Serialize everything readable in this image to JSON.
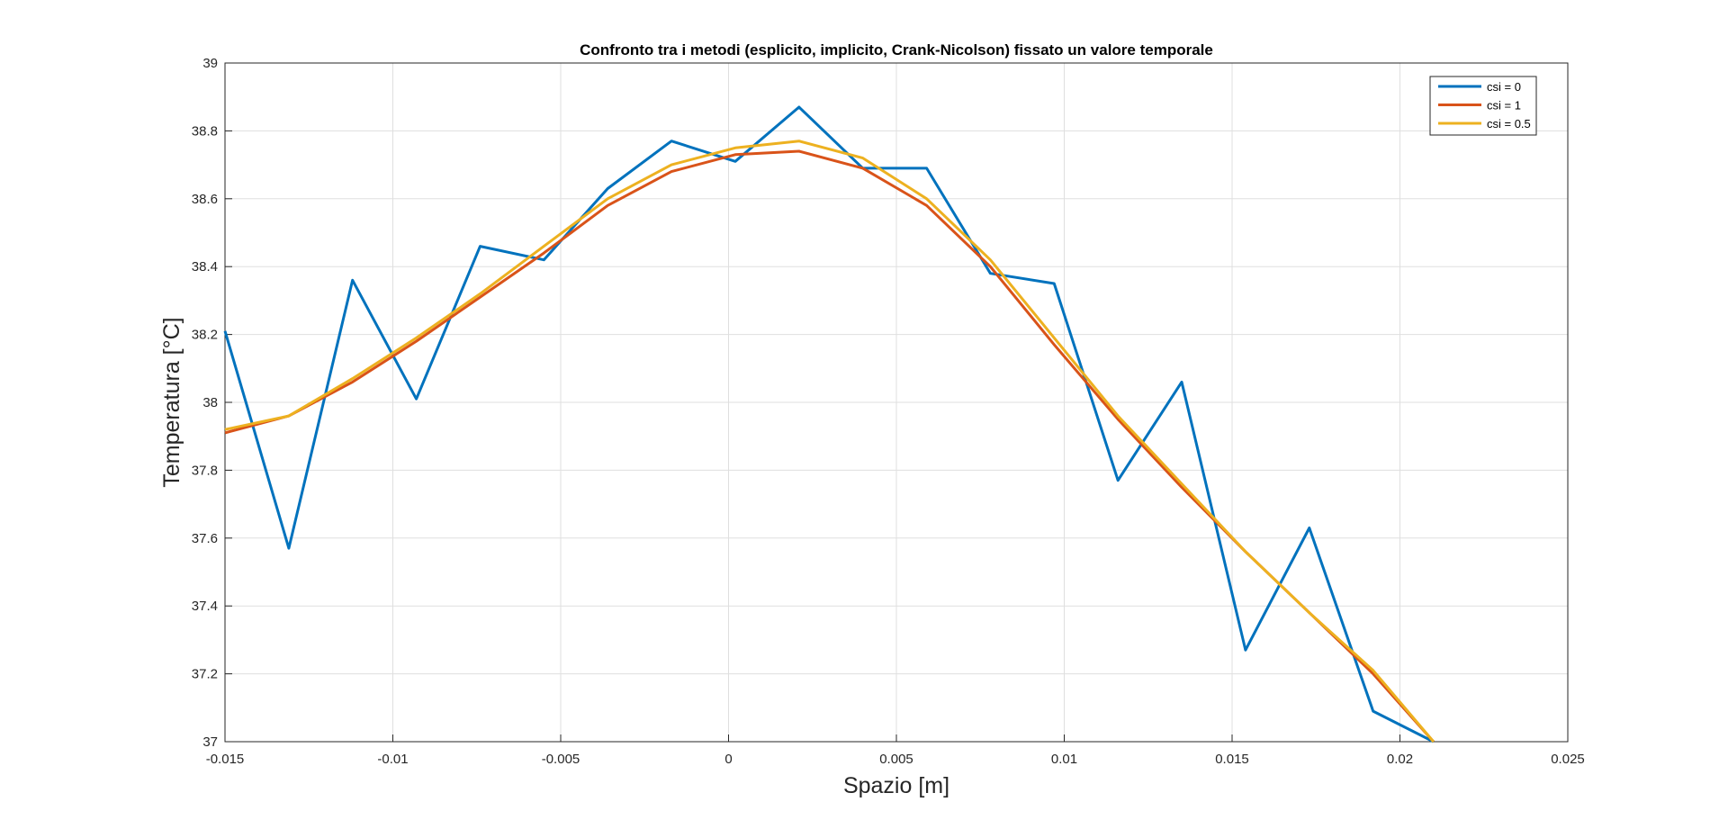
{
  "chart_data": {
    "type": "line",
    "title": "Confronto tra i metodi (esplicito, implicito, Crank-Nicolson) fissato un valore temporale",
    "xlabel": "Spazio [m]",
    "ylabel": "Temperatura [°C]",
    "xlim": [
      -0.015,
      0.025
    ],
    "ylim": [
      37,
      39
    ],
    "x_ticks": [
      -0.015,
      -0.01,
      -0.005,
      0,
      0.005,
      0.01,
      0.015,
      0.02,
      0.025
    ],
    "x_tick_labels": [
      "-0.015",
      "-0.01",
      "-0.005",
      "0",
      "0.005",
      "0.01",
      "0.015",
      "0.02",
      "0.025"
    ],
    "y_ticks": [
      37,
      37.2,
      37.4,
      37.6,
      37.8,
      38,
      38.2,
      38.4,
      38.6,
      38.8,
      39
    ],
    "y_tick_labels": [
      "37",
      "37.2",
      "37.4",
      "37.6",
      "37.8",
      "38",
      "38.2",
      "38.4",
      "38.6",
      "38.8",
      "39"
    ],
    "grid": true,
    "legend_position": "top-right",
    "x": [
      -0.015,
      -0.0131,
      -0.0112,
      -0.0093,
      -0.0074,
      -0.0055,
      -0.0036,
      -0.0017,
      0.0002,
      0.0021,
      0.004,
      0.0059,
      0.0078,
      0.0097,
      0.0116,
      0.0135,
      0.0154,
      0.0173,
      0.0192,
      0.021
    ],
    "series": [
      {
        "name": "csi = 0",
        "color": "#0072BD",
        "values": [
          38.21,
          37.57,
          38.36,
          38.01,
          38.46,
          38.42,
          38.63,
          38.77,
          38.71,
          38.87,
          38.69,
          38.69,
          38.38,
          38.35,
          37.77,
          38.06,
          37.27,
          37.63,
          37.09,
          37.0
        ]
      },
      {
        "name": "csi = 1",
        "color": "#D95319",
        "values": [
          37.91,
          37.96,
          38.06,
          38.18,
          38.31,
          38.44,
          38.58,
          38.68,
          38.73,
          38.74,
          38.69,
          38.58,
          38.4,
          38.17,
          37.95,
          37.75,
          37.56,
          37.38,
          37.2,
          37.0
        ]
      },
      {
        "name": "csi = 0.5",
        "color": "#EDB120",
        "values": [
          37.92,
          37.96,
          38.07,
          38.19,
          38.32,
          38.46,
          38.6,
          38.7,
          38.75,
          38.77,
          38.72,
          38.6,
          38.42,
          38.19,
          37.96,
          37.76,
          37.56,
          37.38,
          37.21,
          37.0
        ]
      }
    ]
  }
}
